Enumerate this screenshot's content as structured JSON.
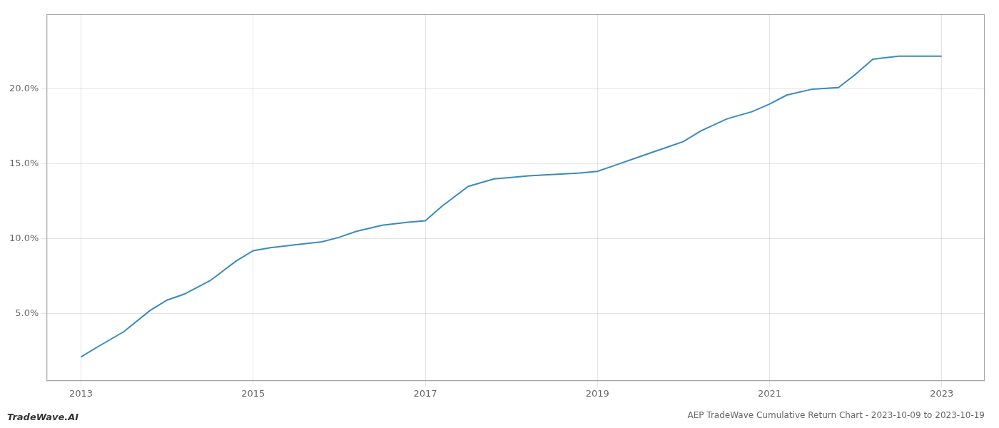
{
  "chart_data": {
    "type": "line",
    "title": "AEP TradeWave Cumulative Return Chart - 2023-10-09 to 2023-10-19",
    "annotations": [
      "TradeWave.AI"
    ],
    "x": [
      2013.0,
      2013.2,
      2013.5,
      2013.8,
      2014.0,
      2014.2,
      2014.5,
      2014.8,
      2015.0,
      2015.2,
      2015.5,
      2015.8,
      2016.0,
      2016.2,
      2016.5,
      2016.8,
      2017.0,
      2017.2,
      2017.5,
      2017.8,
      2018.0,
      2018.2,
      2018.5,
      2018.8,
      2019.0,
      2019.2,
      2019.5,
      2019.8,
      2020.0,
      2020.2,
      2020.5,
      2020.8,
      2021.0,
      2021.2,
      2021.5,
      2021.8,
      2022.0,
      2022.2,
      2022.5,
      2022.8,
      2023.0
    ],
    "values": [
      2.1,
      2.8,
      3.8,
      5.2,
      5.9,
      6.3,
      7.2,
      8.5,
      9.2,
      9.4,
      9.6,
      9.8,
      10.1,
      10.5,
      10.9,
      11.1,
      11.2,
      12.2,
      13.5,
      14.0,
      14.1,
      14.2,
      14.3,
      14.4,
      14.5,
      14.9,
      15.5,
      16.1,
      16.5,
      17.2,
      18.0,
      18.5,
      19.0,
      19.6,
      20.0,
      20.1,
      21.0,
      22.0,
      22.2,
      22.2,
      22.2
    ],
    "color": "#3a8abf",
    "xlim": [
      2012.6,
      2023.5
    ],
    "ylim": [
      0.5,
      25.0
    ],
    "xticks": [
      2013,
      2015,
      2017,
      2019,
      2021,
      2023
    ],
    "yticks": [
      {
        "value": 5.0,
        "label": "5.0%"
      },
      {
        "value": 10.0,
        "label": "10.0%"
      },
      {
        "value": 15.0,
        "label": "15.0%"
      },
      {
        "value": 20.0,
        "label": "20.0%"
      }
    ],
    "grid": true
  }
}
